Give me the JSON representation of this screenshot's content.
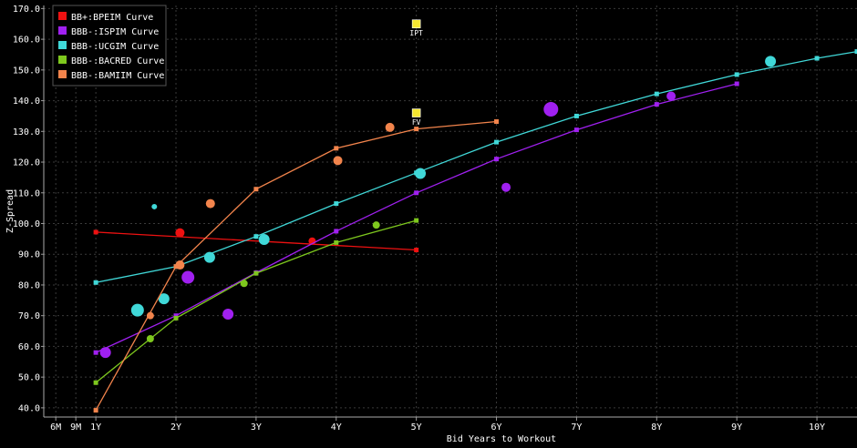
{
  "chart_data": {
    "type": "scatter",
    "xlabel": "Bid Years to Workout",
    "ylabel": "Z-Spread",
    "ylim": [
      37,
      171
    ],
    "xlim": [
      0.35,
      10.5
    ],
    "x_ticks": [
      {
        "label": "6M",
        "value": 0.5
      },
      {
        "label": "9M",
        "value": 0.75
      },
      {
        "label": "1Y",
        "value": 1
      },
      {
        "label": "2Y",
        "value": 2
      },
      {
        "label": "3Y",
        "value": 3
      },
      {
        "label": "4Y",
        "value": 4
      },
      {
        "label": "5Y",
        "value": 5
      },
      {
        "label": "6Y",
        "value": 6
      },
      {
        "label": "7Y",
        "value": 7
      },
      {
        "label": "8Y",
        "value": 8
      },
      {
        "label": "9Y",
        "value": 9
      },
      {
        "label": "10Y",
        "value": 10
      }
    ],
    "y_ticks": [
      "40.0",
      "50.0",
      "60.0",
      "70.0",
      "80.0",
      "90.0",
      "100.0",
      "110.0",
      "120.0",
      "130.0",
      "140.0",
      "150.0",
      "160.0",
      "170.0"
    ],
    "grid": true,
    "legend_position": "top-left",
    "series": [
      {
        "name": "BB+:BPEIM Curve",
        "color": "#ee1111",
        "curve": [
          [
            1.0,
            97.2
          ],
          [
            5.0,
            91.4
          ]
        ],
        "bonds": [
          [
            2.05,
            97.0,
            5
          ],
          [
            3.7,
            94.3,
            4
          ]
        ]
      },
      {
        "name": "BBB-:ISPIM Curve",
        "color": "#a020f0",
        "curve": [
          [
            1.0,
            58.0
          ],
          [
            2.0,
            70.0
          ],
          [
            3.0,
            84.0
          ],
          [
            4.0,
            97.5
          ],
          [
            5.0,
            110.0
          ],
          [
            6.0,
            121.0
          ],
          [
            7.0,
            130.5
          ],
          [
            8.0,
            138.8
          ],
          [
            9.0,
            145.5
          ]
        ],
        "bonds": [
          [
            1.12,
            58.0,
            6
          ],
          [
            2.15,
            82.5,
            7
          ],
          [
            2.65,
            70.5,
            6
          ],
          [
            6.12,
            111.8,
            5
          ],
          [
            6.68,
            137.2,
            8
          ],
          [
            8.18,
            141.5,
            5
          ]
        ]
      },
      {
        "name": "BBB-:UCGIM Curve",
        "color": "#40d8d8",
        "curve": [
          [
            1.0,
            80.8
          ],
          [
            2.0,
            86.0
          ],
          [
            3.0,
            95.8
          ],
          [
            4.0,
            106.5
          ],
          [
            5.0,
            116.5
          ],
          [
            6.0,
            126.5
          ],
          [
            7.0,
            135.0
          ],
          [
            8.0,
            142.2
          ],
          [
            9.0,
            148.5
          ],
          [
            10.0,
            153.8
          ],
          [
            10.5,
            156.0
          ]
        ],
        "bonds": [
          [
            1.52,
            71.8,
            7
          ],
          [
            1.73,
            105.5,
            3
          ],
          [
            1.85,
            75.5,
            6
          ],
          [
            2.42,
            89.0,
            6
          ],
          [
            3.1,
            94.8,
            6
          ],
          [
            5.05,
            116.3,
            6
          ],
          [
            9.42,
            152.8,
            6
          ]
        ]
      },
      {
        "name": "BBB-:BACRED Curve",
        "color": "#7ec81e",
        "curve": [
          [
            1.0,
            48.2
          ],
          [
            2.0,
            69.2
          ],
          [
            3.0,
            83.8
          ],
          [
            4.0,
            93.8
          ],
          [
            5.0,
            101.0
          ]
        ],
        "bonds": [
          [
            1.68,
            62.5,
            4
          ],
          [
            2.85,
            80.5,
            4
          ],
          [
            4.5,
            99.5,
            4
          ]
        ]
      },
      {
        "name": "BBB-:BAMIIM Curve",
        "color": "#f2844c",
        "curve": [
          [
            1.0,
            39.2
          ],
          [
            2.0,
            86.0
          ],
          [
            3.0,
            111.2
          ],
          [
            4.0,
            124.5
          ],
          [
            5.0,
            130.8
          ],
          [
            6.0,
            133.2
          ]
        ],
        "bonds": [
          [
            1.68,
            70.0,
            4
          ],
          [
            2.05,
            86.5,
            5
          ],
          [
            2.43,
            106.5,
            5
          ],
          [
            4.02,
            120.5,
            5
          ],
          [
            4.67,
            131.3,
            5
          ]
        ]
      }
    ],
    "markers": [
      {
        "label": "IPT",
        "x": 5.0,
        "y": 165.0,
        "color": "#f6e830"
      },
      {
        "label": "FV",
        "x": 5.0,
        "y": 136.0,
        "color": "#f6e830"
      }
    ]
  }
}
